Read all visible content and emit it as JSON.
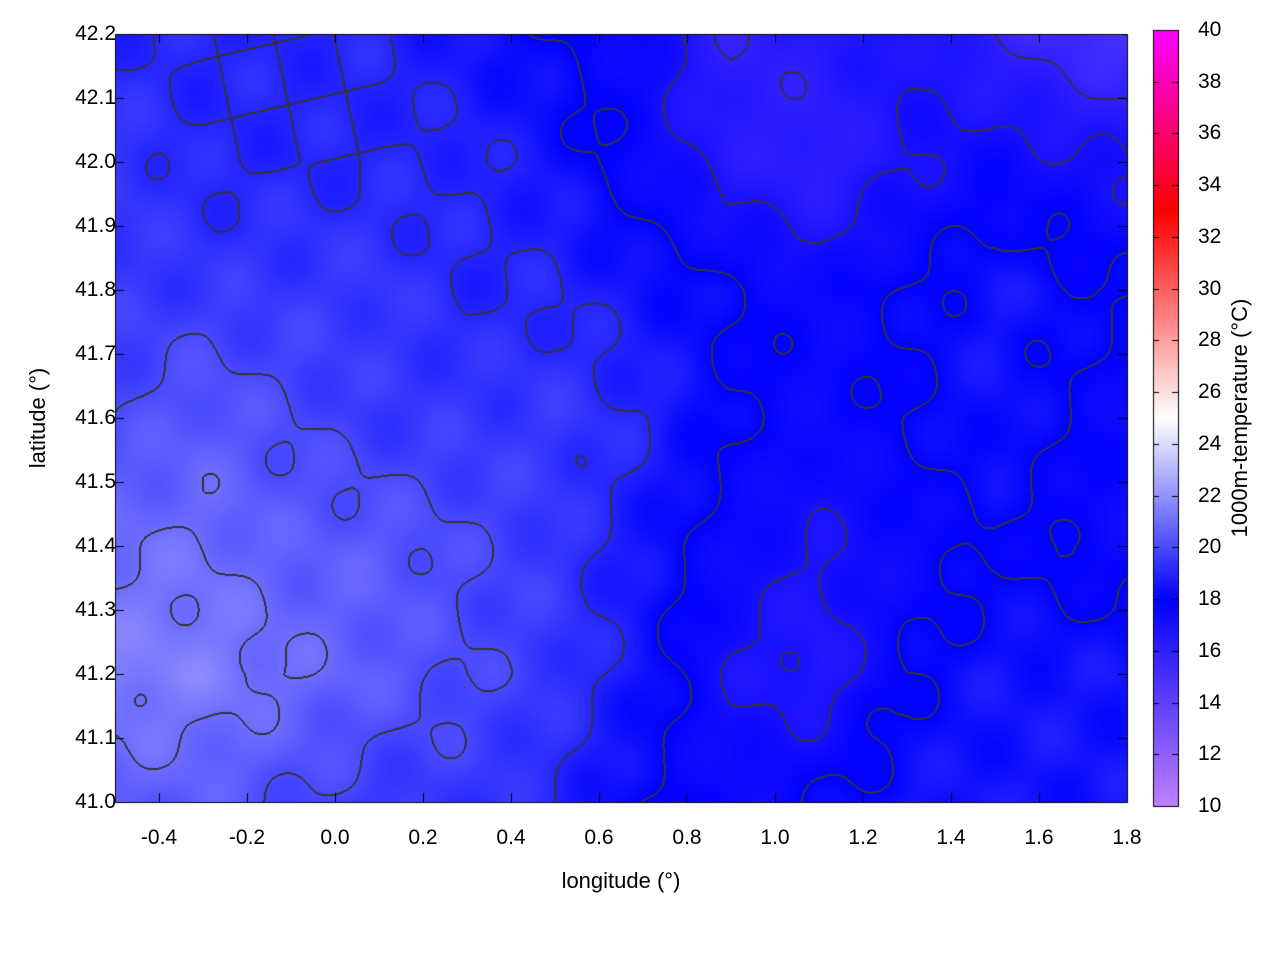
{
  "chart_data": {
    "type": "heatmap",
    "title": "",
    "xlabel": "longitude (°)",
    "ylabel": "latitude (°)",
    "colorbar_label": "1000m-temperature (°C)",
    "xlim": [
      -0.5,
      1.8
    ],
    "ylim": [
      41.0,
      42.2
    ],
    "clim": [
      10,
      40
    ],
    "xticks": [
      "-0.4",
      "-0.2",
      "0.0",
      "0.2",
      "0.4",
      "0.6",
      "0.8",
      "1.0",
      "1.2",
      "1.4",
      "1.6",
      "1.8"
    ],
    "yticks": [
      "41.0",
      "41.1",
      "41.2",
      "41.3",
      "41.4",
      "41.5",
      "41.6",
      "41.7",
      "41.8",
      "41.9",
      "42.0",
      "42.1",
      "42.2"
    ],
    "cticks": [
      "10",
      "12",
      "14",
      "16",
      "18",
      "20",
      "22",
      "24",
      "26",
      "28",
      "30",
      "32",
      "34",
      "36",
      "38",
      "40"
    ],
    "colormap": [
      {
        "value": 10,
        "color": "#c080ff"
      },
      {
        "value": 18,
        "color": "#0000ff"
      },
      {
        "value": 25,
        "color": "#ffffff"
      },
      {
        "value": 33,
        "color": "#ff0000"
      },
      {
        "value": 40,
        "color": "#ff00ff"
      }
    ],
    "contour_interval": 1,
    "contour_color": "#333333",
    "grid": {
      "lon": [
        -0.5,
        -0.3,
        -0.1,
        0.1,
        0.3,
        0.5,
        0.7,
        0.9,
        1.1,
        1.3,
        1.5,
        1.8
      ],
      "lat": [
        42.2,
        42.0,
        41.8,
        41.6,
        41.4,
        41.2,
        41.0
      ],
      "values": [
        [
          19,
          19,
          19,
          19,
          18.5,
          18,
          17.5,
          16,
          16.5,
          17,
          16,
          15
        ],
        [
          19.5,
          19,
          19,
          19,
          19,
          18.5,
          17.5,
          16.5,
          16,
          17,
          17.5,
          17
        ],
        [
          19.5,
          19.5,
          19.5,
          19.5,
          19,
          19,
          18.5,
          18,
          17.5,
          18,
          18.5,
          18
        ],
        [
          20,
          20.5,
          20,
          19.5,
          19.5,
          19.5,
          19,
          18,
          17.5,
          18,
          18.5,
          17.5
        ],
        [
          21,
          21,
          20.5,
          20.5,
          20,
          19.5,
          18.5,
          17.5,
          17,
          17.5,
          18,
          17.5
        ],
        [
          21.5,
          21.5,
          21,
          20.5,
          20,
          19.5,
          18.5,
          17,
          16.5,
          18,
          18.5,
          18.5
        ],
        [
          20.5,
          20.5,
          20,
          19.5,
          19.5,
          19,
          18,
          17.5,
          18,
          18.5,
          18.5,
          18.5
        ]
      ]
    }
  }
}
